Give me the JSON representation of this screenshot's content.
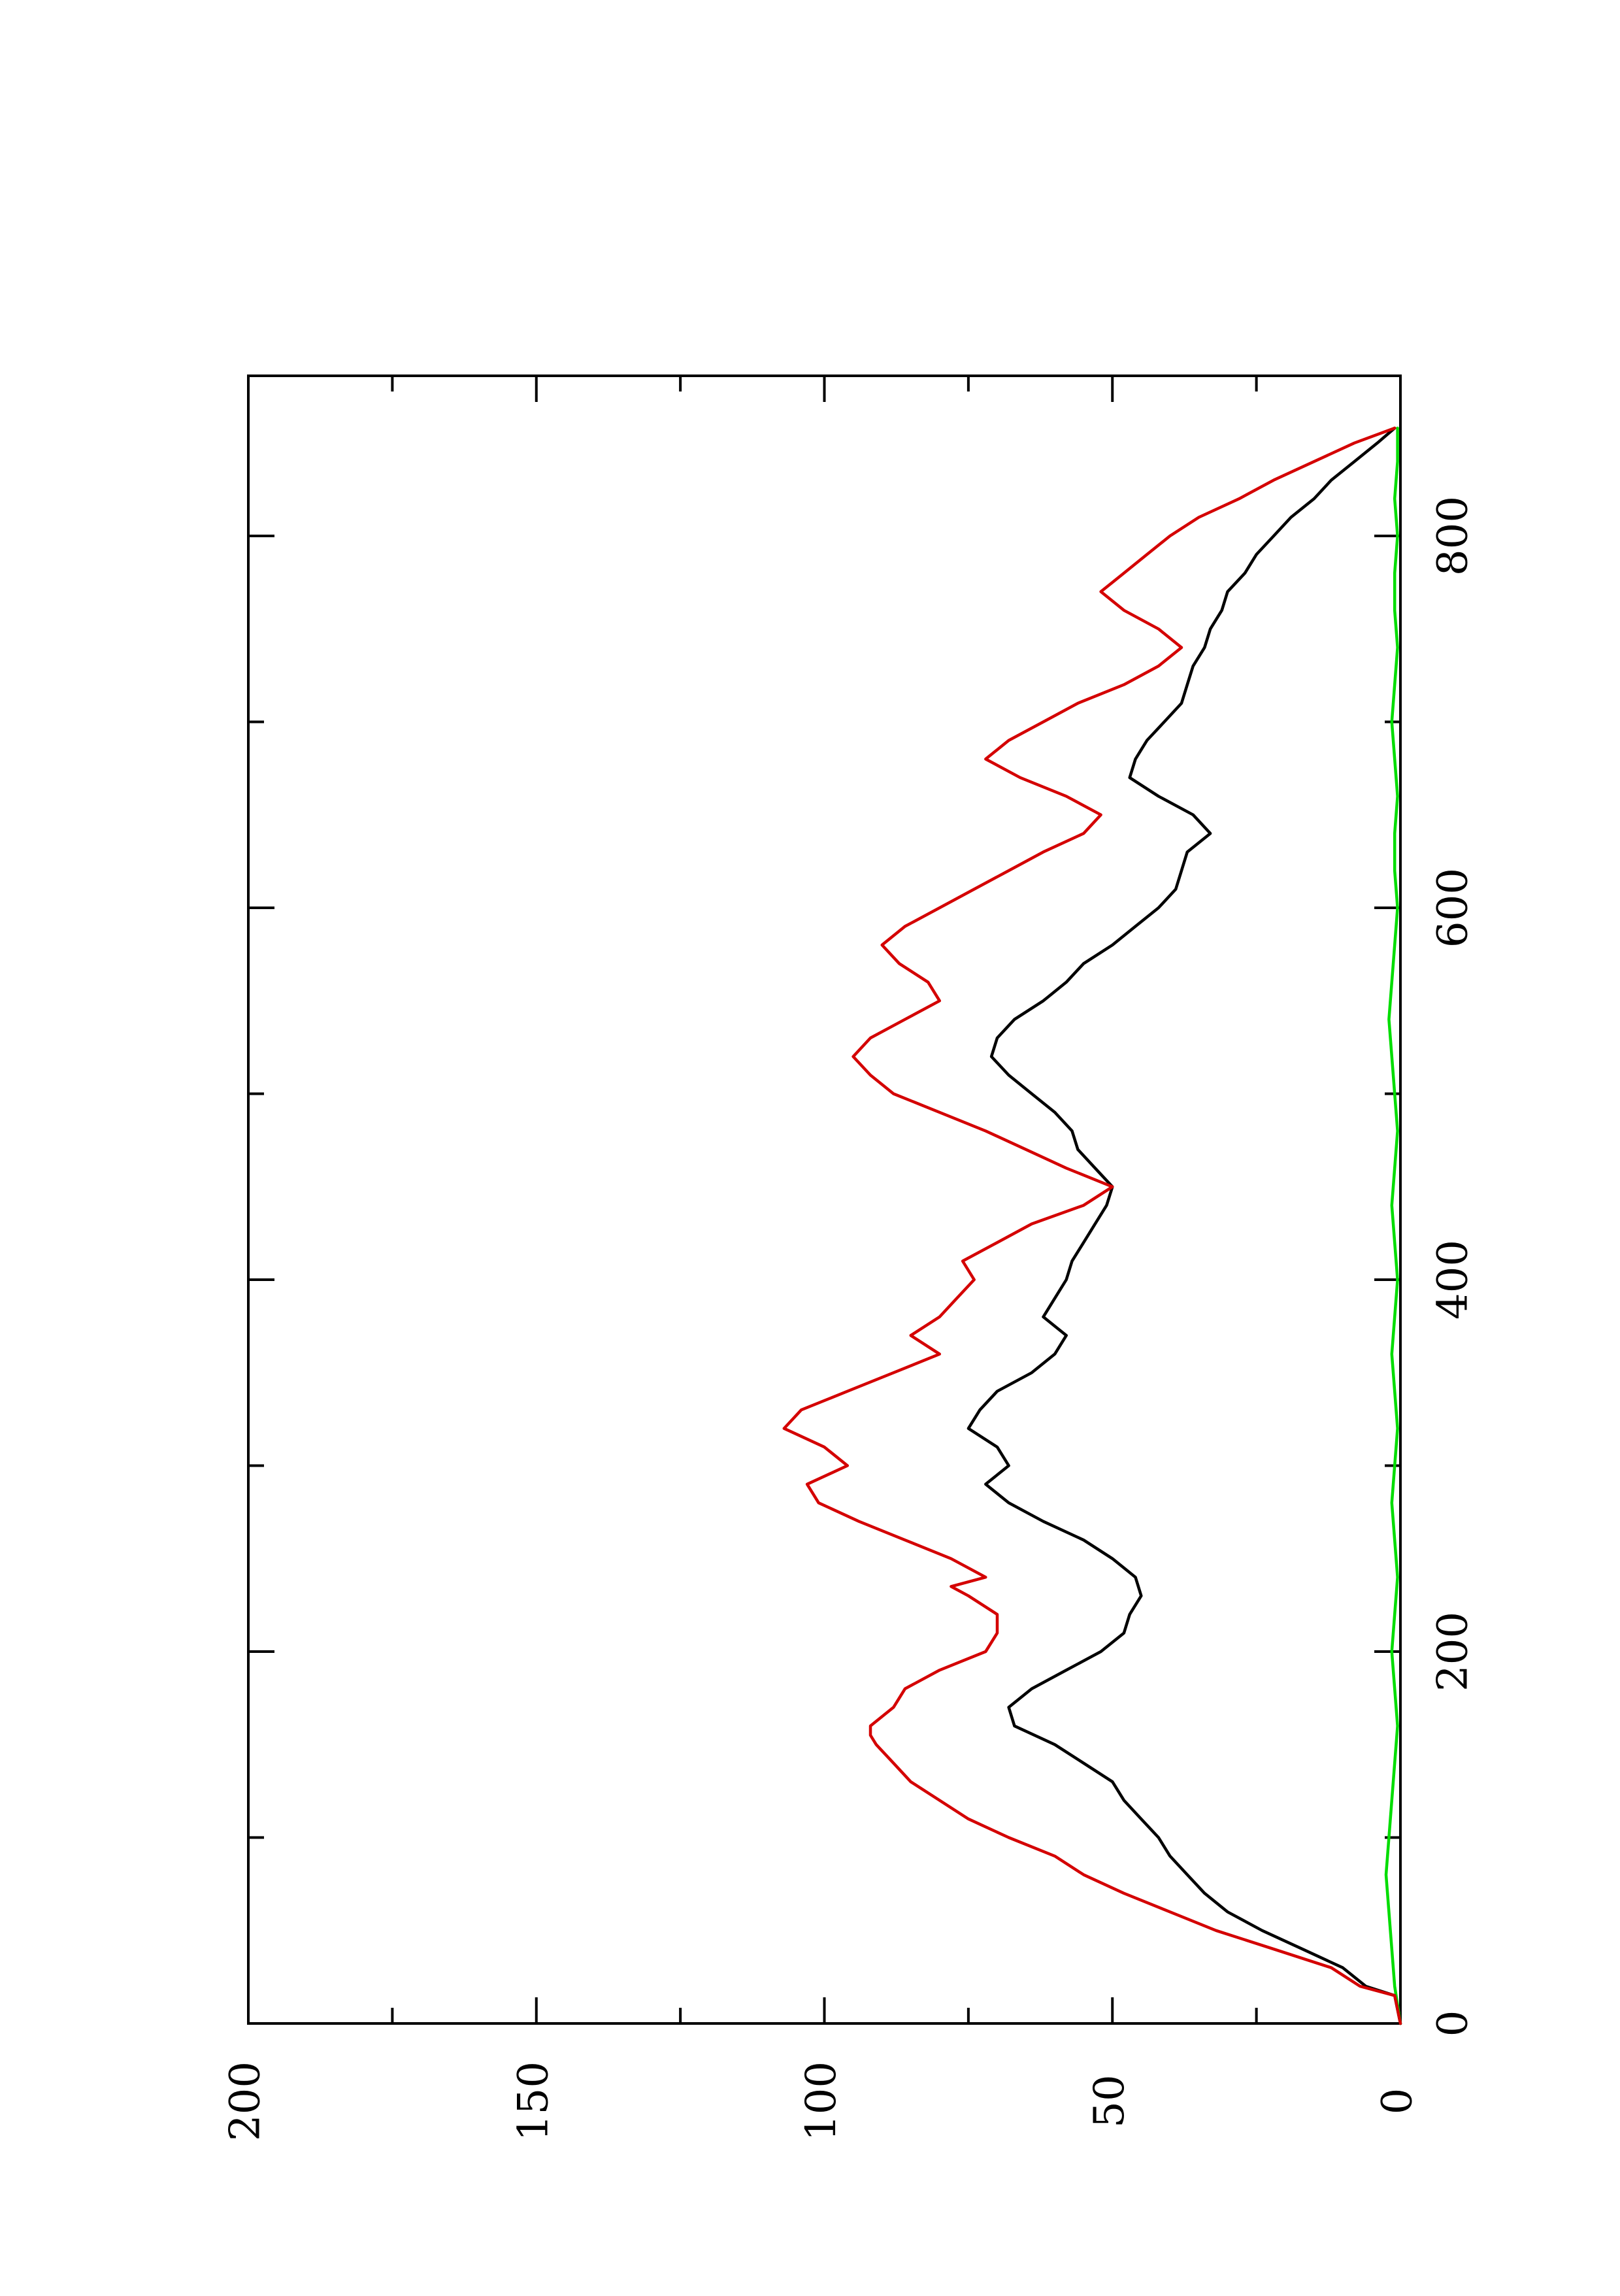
{
  "chart_data": {
    "type": "line",
    "title": "",
    "xlabel": "",
    "ylabel": "",
    "xlim": [
      0,
      880
    ],
    "ylim": [
      0,
      200
    ],
    "grid": false,
    "legend": "none",
    "orientation": "rotated 90 degrees counter-clockwise on page",
    "x_ticks": [
      "0",
      "200",
      "400",
      "600",
      "800"
    ],
    "y_ticks": [
      "0",
      "50",
      "100",
      "150",
      "200"
    ],
    "series": [
      {
        "color": "#d40000",
        "x": [
          0,
          15,
          20,
          30,
          40,
          50,
          60,
          70,
          80,
          90,
          100,
          110,
          120,
          130,
          140,
          150,
          155,
          160,
          170,
          180,
          190,
          200,
          210,
          220,
          230,
          235,
          240,
          250,
          260,
          270,
          280,
          290,
          300,
          310,
          320,
          330,
          340,
          350,
          360,
          370,
          380,
          390,
          400,
          410,
          420,
          430,
          440,
          450,
          460,
          470,
          480,
          490,
          500,
          510,
          520,
          530,
          540,
          550,
          560,
          570,
          580,
          590,
          600,
          610,
          620,
          630,
          640,
          650,
          660,
          670,
          680,
          690,
          700,
          710,
          720,
          730,
          740,
          750,
          760,
          770,
          780,
          790,
          800,
          810,
          820,
          830,
          840,
          850,
          858
        ],
        "y": [
          0,
          1,
          7,
          12,
          22,
          32,
          40,
          48,
          55,
          60,
          68,
          75,
          80,
          85,
          88,
          91,
          92,
          92,
          88,
          86,
          80,
          72,
          70,
          70,
          75,
          78,
          72,
          78,
          86,
          94,
          101,
          103,
          96,
          100,
          107,
          104,
          96,
          88,
          80,
          85,
          80,
          77,
          74,
          76,
          70,
          64,
          55,
          50,
          58,
          65,
          72,
          80,
          88,
          92,
          95,
          92,
          86,
          80,
          82,
          87,
          90,
          86,
          80,
          74,
          68,
          62,
          55,
          52,
          58,
          66,
          72,
          68,
          62,
          56,
          48,
          42,
          38,
          42,
          48,
          52,
          48,
          44,
          40,
          35,
          28,
          22,
          15,
          8,
          1
        ]
      },
      {
        "color": "#000000",
        "x": [
          0,
          15,
          20,
          30,
          40,
          50,
          60,
          70,
          80,
          90,
          100,
          110,
          120,
          130,
          140,
          150,
          160,
          170,
          180,
          190,
          200,
          210,
          220,
          230,
          240,
          250,
          260,
          270,
          280,
          290,
          300,
          310,
          320,
          330,
          340,
          350,
          360,
          370,
          380,
          390,
          400,
          410,
          420,
          430,
          440,
          450,
          460,
          470,
          480,
          490,
          500,
          510,
          520,
          530,
          540,
          550,
          560,
          570,
          580,
          590,
          600,
          610,
          620,
          630,
          640,
          650,
          660,
          670,
          680,
          690,
          700,
          710,
          720,
          730,
          740,
          750,
          760,
          770,
          780,
          790,
          800,
          810,
          820,
          830,
          840,
          850,
          858
        ],
        "y": [
          0,
          1,
          6,
          10,
          17,
          24,
          30,
          34,
          37,
          40,
          42,
          45,
          48,
          50,
          55,
          60,
          67,
          68,
          64,
          58,
          52,
          48,
          47,
          45,
          46,
          50,
          55,
          62,
          68,
          72,
          68,
          70,
          75,
          73,
          70,
          64,
          60,
          58,
          62,
          60,
          58,
          57,
          55,
          53,
          51,
          50,
          53,
          56,
          57,
          60,
          64,
          68,
          71,
          70,
          67,
          62,
          58,
          55,
          50,
          46,
          42,
          39,
          38,
          37,
          33,
          36,
          42,
          47,
          46,
          44,
          41,
          38,
          37,
          36,
          34,
          33,
          31,
          30,
          27,
          25,
          22,
          19,
          15,
          12,
          8,
          4,
          1
        ]
      },
      {
        "color": "#00dd00",
        "x": [
          0,
          20,
          40,
          60,
          80,
          100,
          120,
          140,
          160,
          180,
          200,
          220,
          240,
          260,
          280,
          300,
          320,
          340,
          360,
          380,
          400,
          420,
          440,
          460,
          480,
          500,
          520,
          540,
          560,
          580,
          600,
          620,
          640,
          660,
          680,
          700,
          720,
          740,
          760,
          780,
          800,
          820,
          840,
          858
        ],
        "y": [
          0,
          1,
          1.5,
          2,
          2.5,
          2,
          1.5,
          1,
          0.5,
          1,
          1.5,
          1,
          0.5,
          1,
          1.5,
          1,
          0.5,
          1,
          1.5,
          1,
          0.5,
          1,
          1.5,
          1,
          0.5,
          1,
          1.5,
          2,
          1.5,
          1,
          0.5,
          1,
          1,
          0.5,
          1,
          1.5,
          1,
          0.5,
          1,
          1,
          0.5,
          1,
          0.5,
          0.5
        ]
      }
    ]
  }
}
